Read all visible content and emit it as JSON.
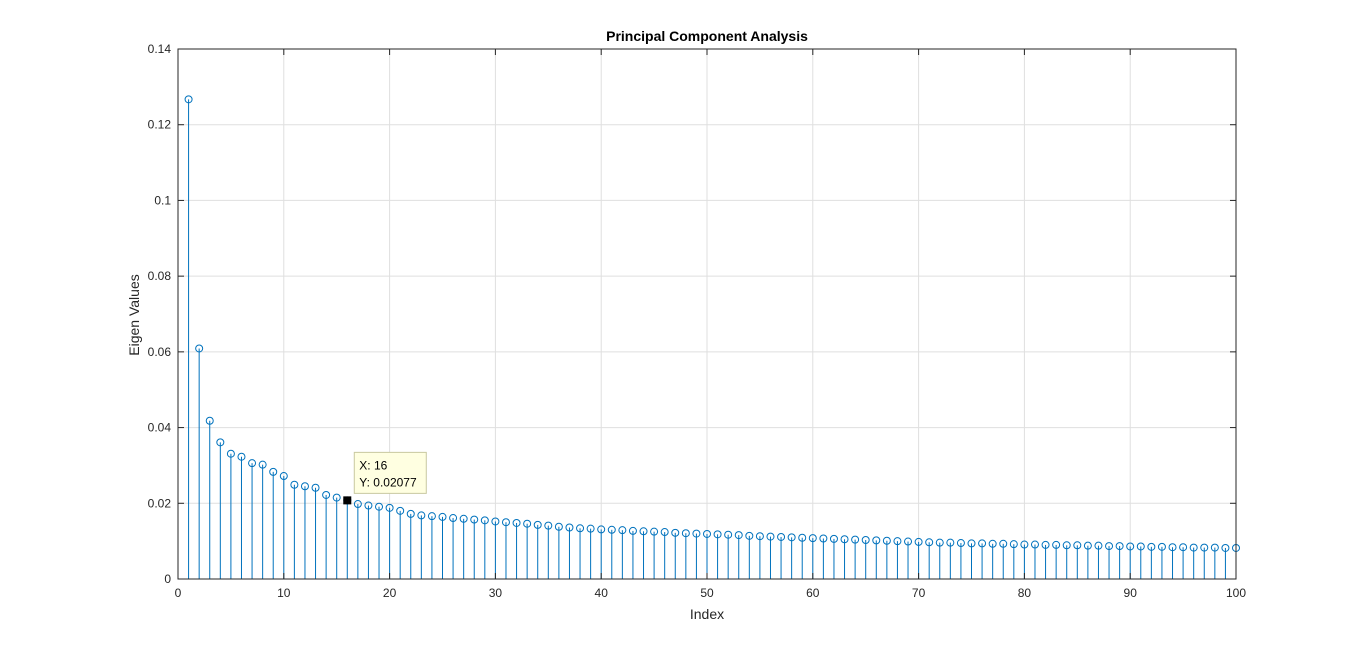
{
  "chart_data": {
    "type": "stem",
    "title": "Principal Component Analysis",
    "xlabel": "Index",
    "ylabel": "Eigen Values",
    "xlim": [
      0,
      100
    ],
    "ylim": [
      0,
      0.14
    ],
    "xticks": [
      0,
      10,
      20,
      30,
      40,
      50,
      60,
      70,
      80,
      90,
      100
    ],
    "xtick_labels": [
      "0",
      "10",
      "20",
      "30",
      "40",
      "50",
      "60",
      "70",
      "80",
      "90",
      "100"
    ],
    "yticks": [
      0,
      0.02,
      0.04,
      0.06,
      0.08,
      0.1,
      0.12,
      0.14
    ],
    "ytick_labels": [
      "0",
      "0.02",
      "0.04",
      "0.06",
      "0.08",
      "0.1",
      "0.12",
      "0.14"
    ],
    "grid": true,
    "color": "#0072BD",
    "x": [
      1,
      2,
      3,
      4,
      5,
      6,
      7,
      8,
      9,
      10,
      11,
      12,
      13,
      14,
      15,
      16,
      17,
      18,
      19,
      20,
      21,
      22,
      23,
      24,
      25,
      26,
      27,
      28,
      29,
      30,
      31,
      32,
      33,
      34,
      35,
      36,
      37,
      38,
      39,
      40,
      41,
      42,
      43,
      44,
      45,
      46,
      47,
      48,
      49,
      50,
      51,
      52,
      53,
      54,
      55,
      56,
      57,
      58,
      59,
      60,
      61,
      62,
      63,
      64,
      65,
      66,
      67,
      68,
      69,
      70,
      71,
      72,
      73,
      74,
      75,
      76,
      77,
      78,
      79,
      80,
      81,
      82,
      83,
      84,
      85,
      86,
      87,
      88,
      89,
      90,
      91,
      92,
      93,
      94,
      95,
      96,
      97,
      98,
      99,
      100
    ],
    "values": [
      0.1267,
      0.0609,
      0.0418,
      0.0361,
      0.0331,
      0.0323,
      0.0306,
      0.0302,
      0.0283,
      0.0272,
      0.0249,
      0.0245,
      0.0241,
      0.0222,
      0.0215,
      0.02077,
      0.0198,
      0.0194,
      0.0191,
      0.0188,
      0.018,
      0.0172,
      0.0168,
      0.0166,
      0.0164,
      0.0161,
      0.0159,
      0.0157,
      0.0155,
      0.0152,
      0.015,
      0.0148,
      0.0146,
      0.0143,
      0.0141,
      0.0138,
      0.0136,
      0.0134,
      0.0133,
      0.0131,
      0.013,
      0.0129,
      0.0127,
      0.0126,
      0.0125,
      0.0124,
      0.0122,
      0.0121,
      0.012,
      0.0119,
      0.0118,
      0.0117,
      0.0116,
      0.0114,
      0.0113,
      0.0112,
      0.0111,
      0.011,
      0.0109,
      0.0108,
      0.0107,
      0.0106,
      0.0105,
      0.0104,
      0.0103,
      0.0102,
      0.0101,
      0.01,
      0.0099,
      0.0098,
      0.0097,
      0.0096,
      0.0096,
      0.0095,
      0.0094,
      0.0094,
      0.0093,
      0.0093,
      0.0092,
      0.0091,
      0.0091,
      0.009,
      0.009,
      0.0089,
      0.0089,
      0.0088,
      0.0088,
      0.0087,
      0.0087,
      0.0086,
      0.0086,
      0.0085,
      0.0085,
      0.0084,
      0.0084,
      0.0083,
      0.0083,
      0.0083,
      0.0082,
      0.0082
    ],
    "datatip": {
      "x": 16,
      "y": 0.02077,
      "x_label": "X: 16",
      "y_label": "Y: 0.02077"
    }
  }
}
